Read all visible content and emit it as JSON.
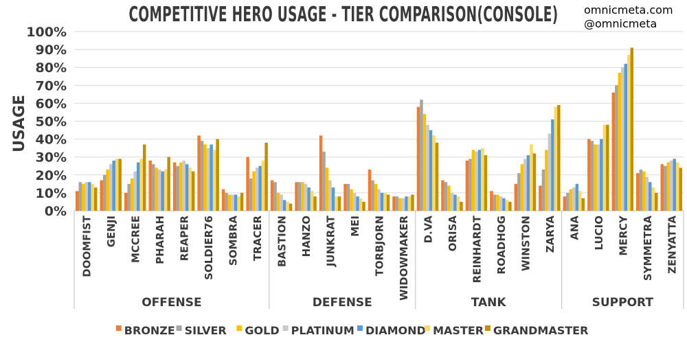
{
  "chart_data": {
    "type": "bar",
    "title": "COMPETITIVE HERO USAGE - TIER COMPARISON(CONSOLE)",
    "credits": [
      "omnicmeta.com",
      "@omnicmeta"
    ],
    "ylabel": "USAGE",
    "ylim": [
      0,
      100
    ],
    "yticks": [
      "0%",
      "10%",
      "20%",
      "30%",
      "40%",
      "50%",
      "60%",
      "70%",
      "80%",
      "90%",
      "100%"
    ],
    "grid": true,
    "legend_position": "bottom",
    "groups": [
      {
        "label": "OFFENSE",
        "categories": [
          "DOOMFIST",
          "GENJI",
          "MCCREE",
          "PHARAH",
          "REAPER",
          "SOLDIER76",
          "SOMBRA",
          "TRACER"
        ]
      },
      {
        "label": "DEFENSE",
        "categories": [
          "BASTION",
          "HANZO",
          "JUNKRAT",
          "MEI",
          "TORBJORN",
          "WIDOWMAKER"
        ]
      },
      {
        "label": "TANK",
        "categories": [
          "D.VA",
          "ORISA",
          "REINHARDT",
          "ROADHOG",
          "WINSTON",
          "ZARYA"
        ]
      },
      {
        "label": "SUPPORT",
        "categories": [
          "ANA",
          "LUCIO",
          "MERCY",
          "SYMMETRA",
          "ZENYATTA"
        ]
      }
    ],
    "categories": [
      "DOOMFIST",
      "GENJI",
      "MCCREE",
      "PHARAH",
      "REAPER",
      "SOLDIER76",
      "SOMBRA",
      "TRACER",
      "BASTION",
      "HANZO",
      "JUNKRAT",
      "MEI",
      "TORBJORN",
      "WIDOWMAKER",
      "D.VA",
      "ORISA",
      "REINHARDT",
      "ROADHOG",
      "WINSTON",
      "ZARYA",
      "ANA",
      "LUCIO",
      "MERCY",
      "SYMMETRA",
      "ZENYATTA"
    ],
    "series": [
      {
        "name": "BRONZE",
        "color": "#ED7D31",
        "values": [
          11,
          17,
          10,
          28,
          27,
          42,
          12,
          30,
          17,
          16,
          42,
          15,
          23,
          8,
          58,
          17,
          28,
          11,
          15,
          14,
          8,
          40,
          66,
          21,
          26
        ]
      },
      {
        "name": "SILVER",
        "color": "#A5A5A5",
        "values": [
          16,
          20,
          15,
          26,
          25,
          39,
          10,
          18,
          16,
          16,
          33,
          15,
          17,
          8,
          62,
          16,
          29,
          9,
          21,
          23,
          10,
          39,
          70,
          23,
          25
        ]
      },
      {
        "name": "GOLD",
        "color": "#FFC000",
        "values": [
          15,
          23,
          18,
          24,
          27,
          37,
          9,
          22,
          10,
          16,
          24,
          12,
          15,
          7,
          54,
          14,
          34,
          9,
          26,
          34,
          12,
          37,
          77,
          22,
          27
        ]
      },
      {
        "name": "PLATINUM",
        "color": "#C9C9C9",
        "values": [
          16,
          26,
          22,
          23,
          28,
          35,
          9,
          24,
          9,
          15,
          17,
          10,
          12,
          7,
          48,
          10,
          33,
          8,
          29,
          43,
          13,
          37,
          80,
          19,
          28
        ]
      },
      {
        "name": "DIAMOND",
        "color": "#5B9BD5",
        "values": [
          16,
          28,
          27,
          22,
          26,
          37,
          9,
          25,
          6,
          13,
          13,
          8,
          10,
          8,
          45,
          9,
          34,
          7,
          31,
          51,
          15,
          40,
          82,
          16,
          29
        ]
      },
      {
        "name": "MASTER",
        "color": "#FFD966",
        "values": [
          15,
          29,
          29,
          23,
          24,
          34,
          8,
          28,
          5,
          11,
          8,
          7,
          10,
          8,
          42,
          8,
          35,
          6,
          37,
          58,
          11,
          48,
          87,
          13,
          27
        ]
      },
      {
        "name": "GRANDMASTER",
        "color": "#BF9000",
        "values": [
          13,
          29,
          37,
          30,
          22,
          40,
          10,
          38,
          4,
          8,
          8,
          5,
          9,
          9,
          38,
          5,
          31,
          5,
          32,
          59,
          7,
          48,
          91,
          10,
          24
        ]
      }
    ]
  }
}
